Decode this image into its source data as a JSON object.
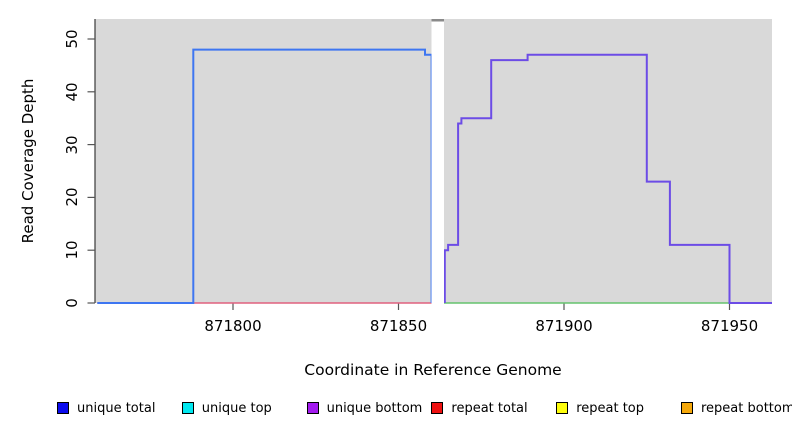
{
  "chart_data": {
    "type": "line",
    "subtype": "step",
    "title": "",
    "xlabel": "Coordinate in Reference Genome",
    "ylabel": "Read Coverage Depth",
    "x_ticks": [
      871800,
      871850,
      871900,
      871950
    ],
    "y_ticks": [
      0,
      10,
      20,
      30,
      40,
      50
    ],
    "xlim": [
      871758,
      871963
    ],
    "ylim": [
      0,
      53
    ],
    "grid": false,
    "panel_background": "#d9d9d9",
    "gap_region": [
      871860,
      871864
    ],
    "panels": [
      {
        "name": "left-panel",
        "x_range": [
          871759,
          871860
        ],
        "series": [
          {
            "name": "repeat total baseline",
            "color": "#e0617f",
            "width": 1.6,
            "points": [
              [
                871759,
                0
              ],
              [
                871861,
                0
              ]
            ]
          },
          {
            "name": "unique total coverage",
            "color": "#3e76f1",
            "width": 2,
            "points": [
              [
                871759,
                0
              ],
              [
                871788,
                0
              ],
              [
                871788,
                48
              ],
              [
                871858,
                48
              ],
              [
                871858,
                47
              ],
              [
                871860,
                47
              ],
              [
                871860,
                0
              ]
            ]
          }
        ]
      },
      {
        "name": "right-panel",
        "x_range": [
          871864,
          871963
        ],
        "series": [
          {
            "name": "baseline",
            "color": "#65c36e",
            "width": 1.6,
            "points": [
              [
                871863,
                0
              ],
              [
                871950,
                0
              ]
            ]
          },
          {
            "name": "unique bottom coverage",
            "color": "#6c4ce6",
            "width": 2,
            "points": [
              [
                871864,
                0
              ],
              [
                871864,
                10
              ],
              [
                871865,
                10
              ],
              [
                871865,
                11
              ],
              [
                871868,
                11
              ],
              [
                871868,
                34
              ],
              [
                871869,
                34
              ],
              [
                871869,
                35
              ],
              [
                871878,
                35
              ],
              [
                871878,
                46
              ],
              [
                871889,
                46
              ],
              [
                871889,
                47
              ],
              [
                871925,
                47
              ],
              [
                871925,
                23
              ],
              [
                871932,
                23
              ],
              [
                871932,
                11
              ],
              [
                871950,
                11
              ],
              [
                871950,
                0
              ],
              [
                871964,
                0
              ]
            ]
          }
        ]
      }
    ],
    "legend_position": "bottom",
    "legend": [
      {
        "label": "unique total",
        "color": "#0b0bee"
      },
      {
        "label": "unique top",
        "color": "#00e8f0"
      },
      {
        "label": "unique bottom",
        "color": "#a31aef"
      },
      {
        "label": "repeat total",
        "color": "#ee1111"
      },
      {
        "label": "repeat top",
        "color": "#fdfd0c"
      },
      {
        "label": "repeat bottom",
        "color": "#f5a80b"
      }
    ]
  }
}
